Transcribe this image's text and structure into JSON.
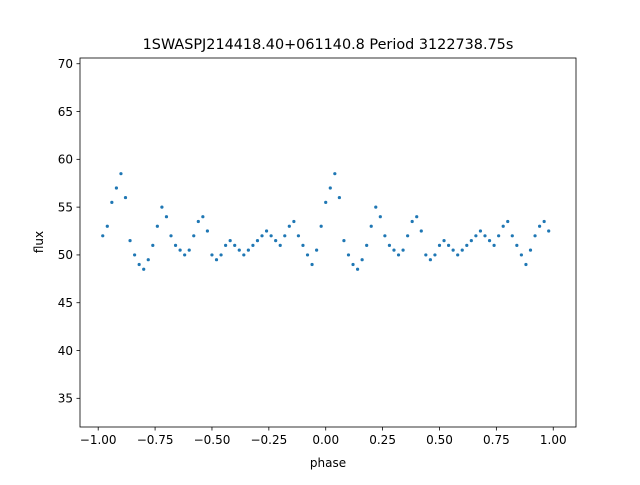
{
  "chart_data": {
    "type": "scatter",
    "title": "1SWASPJ214418.40+061140.8 Period 3122738.75s",
    "xlabel": "phase",
    "ylabel": "flux",
    "xlim": [
      -1.08,
      1.1
    ],
    "ylim": [
      32.0,
      70.6
    ],
    "xticks": [
      -1.0,
      -0.75,
      -0.5,
      -0.25,
      0.0,
      0.25,
      0.5,
      0.75,
      1.0
    ],
    "xtick_labels": [
      "−1.00",
      "−0.75",
      "−0.50",
      "−0.25",
      "0.00",
      "0.25",
      "0.50",
      "0.75",
      "1.00"
    ],
    "yticks": [
      35,
      40,
      45,
      50,
      55,
      60,
      65,
      70
    ],
    "ytick_labels": [
      "35",
      "40",
      "45",
      "50",
      "55",
      "60",
      "65",
      "70"
    ],
    "grid": false,
    "legend": "none",
    "marker_color": "#1f77b4",
    "series": [
      {
        "x": [
          -0.98,
          -0.96,
          -0.94,
          -0.92,
          -0.9,
          -0.88,
          -0.86,
          -0.84,
          -0.82,
          -0.8,
          -0.78,
          -0.76,
          -0.74,
          -0.72,
          -0.7,
          -0.68,
          -0.66,
          -0.64,
          -0.62,
          -0.6,
          -0.58,
          -0.56,
          -0.54,
          -0.52,
          -0.5,
          -0.48,
          -0.46,
          -0.44,
          -0.42,
          -0.4,
          -0.38,
          -0.36,
          -0.34,
          -0.32,
          -0.3,
          -0.28,
          -0.26,
          -0.24,
          -0.22,
          -0.2,
          -0.18,
          -0.16,
          -0.14,
          -0.12,
          -0.1,
          -0.08,
          -0.06,
          -0.04,
          -0.02,
          0.0,
          0.02,
          0.04,
          0.06,
          0.08,
          0.1,
          0.12,
          0.14,
          0.16,
          0.18,
          0.2,
          0.22,
          0.24,
          0.26,
          0.28,
          0.3,
          0.32,
          0.34,
          0.36,
          0.38,
          0.4,
          0.42,
          0.44,
          0.46,
          0.48,
          0.5,
          0.52,
          0.54,
          0.56,
          0.58,
          0.6,
          0.62,
          0.64,
          0.66,
          0.68,
          0.7,
          0.72,
          0.74,
          0.76,
          0.78,
          0.8,
          0.82,
          0.84,
          0.86,
          0.88,
          0.9,
          0.92,
          0.94,
          0.96,
          0.98
        ],
        "y": [
          52.0,
          53.0,
          55.5,
          57.0,
          58.5,
          56.0,
          51.5,
          50.0,
          49.0,
          48.5,
          49.5,
          51.0,
          53.0,
          55.0,
          54.0,
          52.0,
          51.0,
          50.5,
          50.0,
          50.5,
          52.0,
          53.5,
          54.0,
          52.5,
          50.0,
          49.5,
          50.0,
          51.0,
          51.5,
          51.0,
          50.5,
          50.0,
          50.5,
          51.0,
          51.5,
          52.0,
          52.5,
          52.0,
          51.5,
          51.0,
          52.0,
          53.0,
          53.5,
          52.0,
          51.0,
          50.0,
          49.0,
          50.5,
          53.0,
          55.5,
          57.0,
          58.5,
          56.0,
          51.5,
          50.0,
          49.0,
          48.5,
          49.5,
          51.0,
          53.0,
          55.0,
          54.0,
          52.0,
          51.0,
          50.5,
          50.0,
          50.5,
          52.0,
          53.5,
          54.0,
          52.5,
          50.0,
          49.5,
          50.0,
          51.0,
          51.5,
          51.0,
          50.5,
          50.0,
          50.5,
          51.0,
          51.5,
          52.0,
          52.5,
          52.0,
          51.5,
          51.0,
          52.0,
          53.0,
          53.5,
          52.0,
          51.0,
          50.0,
          49.0,
          50.5,
          52.0,
          53.0,
          53.5,
          52.5
        ]
      }
    ]
  }
}
